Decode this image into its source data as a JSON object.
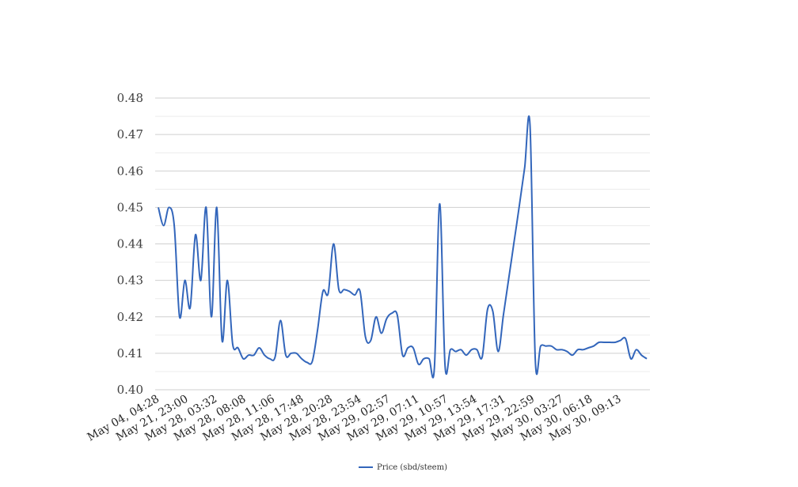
{
  "chart_data": {
    "type": "line",
    "title": "",
    "xlabel": "",
    "ylabel": "",
    "ylim": [
      0.4,
      0.48
    ],
    "yticks": [
      "0.40",
      "0.41",
      "0.42",
      "0.43",
      "0.44",
      "0.45",
      "0.46",
      "0.47",
      "0.48"
    ],
    "grid": true,
    "legend_position": "bottom",
    "x_tick_labels": [
      "May 04, 04:28",
      "May 21, 23:00",
      "May 28, 03:32",
      "May 28, 08:08",
      "May 28, 11:06",
      "May 28, 17:48",
      "May 28, 20:28",
      "May 28, 23:54",
      "May 29, 02:57",
      "May 29, 07:11",
      "May 29, 10:57",
      "May 29, 13:54",
      "May 29, 17:31",
      "May 29, 22:59",
      "May 30, 03:27",
      "May 30, 06:18",
      "May 30, 09:13"
    ],
    "series": [
      {
        "name": "Price (sbd/steem)",
        "color": "#3366bb",
        "values": [
          0.45,
          0.445,
          0.45,
          0.445,
          0.42,
          0.43,
          0.4225,
          0.4425,
          0.43,
          0.45,
          0.42,
          0.45,
          0.4135,
          0.43,
          0.4125,
          0.4115,
          0.4085,
          0.4095,
          0.4095,
          0.4115,
          0.4095,
          0.4085,
          0.409,
          0.419,
          0.4095,
          0.41,
          0.41,
          0.4085,
          0.4075,
          0.4078,
          0.4165,
          0.427,
          0.4265,
          0.44,
          0.4275,
          0.4275,
          0.427,
          0.426,
          0.427,
          0.4145,
          0.4135,
          0.42,
          0.4155,
          0.4195,
          0.421,
          0.4205,
          0.4095,
          0.4115,
          0.4115,
          0.407,
          0.4085,
          0.4085,
          0.406,
          0.451,
          0.4065,
          0.411,
          0.4105,
          0.411,
          0.4095,
          0.411,
          0.411,
          0.409,
          0.422,
          0.4215,
          0.4105,
          0.4205,
          0.4305,
          0.4405,
          0.4505,
          0.461,
          0.4725,
          0.408,
          0.412,
          0.412,
          0.412,
          0.411,
          0.411,
          0.4105,
          0.4095,
          0.411,
          0.411,
          0.4115,
          0.412,
          0.413,
          0.413,
          0.413,
          0.413,
          0.4135,
          0.414,
          0.4085,
          0.411,
          0.4095,
          0.4085
        ]
      }
    ]
  }
}
